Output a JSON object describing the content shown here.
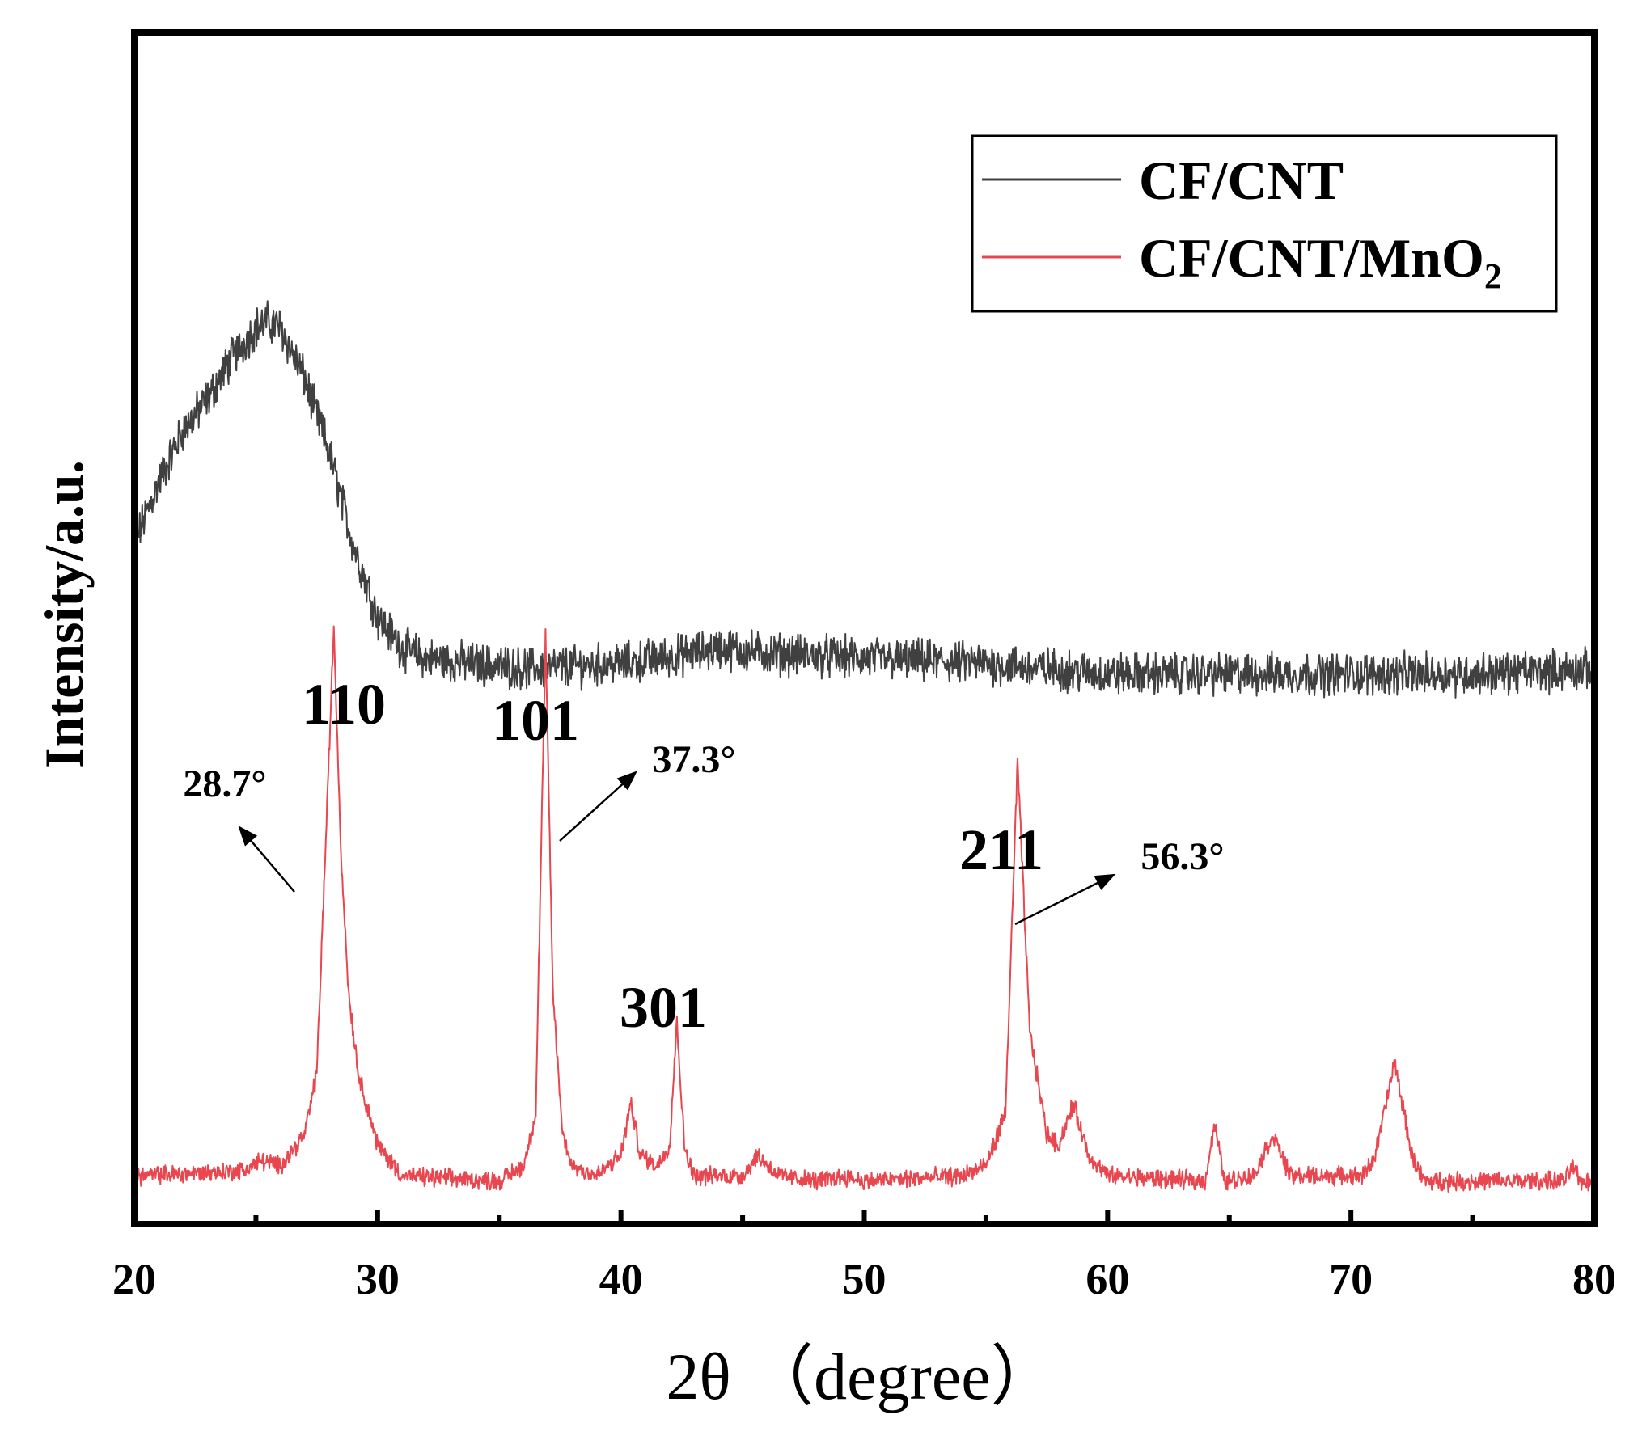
{
  "chart_data": {
    "type": "line",
    "title": "",
    "xlabel": "2θ （degree）",
    "ylabel": "Intensity/a.u.",
    "xlim": [
      20,
      80
    ],
    "xticks": [
      20,
      30,
      40,
      50,
      60,
      70,
      80
    ],
    "ylim": [
      0,
      100
    ],
    "legend_position": "top-right",
    "series": [
      {
        "name": "CF/CNT",
        "color": "#404040",
        "noise": 1.6,
        "x": [
          20,
          21,
          22,
          23,
          24,
          25,
          25.5,
          26,
          27,
          28,
          29,
          30,
          31,
          32,
          34,
          36,
          40,
          43,
          44,
          46,
          50,
          55,
          60,
          65,
          70,
          75,
          80
        ],
        "y": [
          63,
          69,
          74,
          77,
          81,
          84,
          84.5,
          84,
          79,
          72,
          63,
          56,
          53,
          52,
          51.5,
          51,
          51.5,
          52.5,
          53,
          52.5,
          52,
          51.5,
          50.5,
          50.5,
          50.5,
          50.5,
          51
        ]
      },
      {
        "name": "CF/CNT/MnO2",
        "color": "#e8474f",
        "noise": 0.7,
        "x": [
          20,
          24.5,
          25.2,
          26,
          27,
          27.5,
          27.8,
          28.2,
          28.5,
          28.8,
          29.2,
          30,
          31,
          35,
          36,
          36.5,
          36.9,
          37.2,
          37.6,
          38,
          39,
          40,
          40.4,
          40.8,
          41.5,
          42,
          42.3,
          42.6,
          43,
          45,
          45.6,
          46.5,
          48,
          49.2,
          50,
          54,
          55,
          55.8,
          56.3,
          56.8,
          57.5,
          58,
          58.6,
          59.2,
          60,
          64,
          64.4,
          64.8,
          66,
          66.8,
          67.5,
          70.5,
          71,
          71.8,
          72.5,
          73,
          78.8,
          79.1,
          79.4,
          80
        ],
        "y": [
          2,
          2.5,
          3.5,
          3,
          6,
          12,
          30,
          55,
          33,
          20,
          12,
          5,
          2,
          1.5,
          3,
          8,
          54,
          20,
          6,
          3,
          2,
          4,
          9,
          4,
          3,
          5,
          17,
          5,
          2,
          2,
          4,
          2,
          1.5,
          2,
          1.5,
          2,
          3,
          8,
          42,
          16,
          6,
          5,
          9,
          4,
          2,
          1.5,
          7,
          1.5,
          2,
          6,
          2,
          2,
          4,
          13,
          4,
          1.5,
          1.5,
          3,
          1.5,
          1.5
        ]
      }
    ],
    "annotations": [
      {
        "peak": "110",
        "angle": "28.7°"
      },
      {
        "peak": "101",
        "angle": "37.3°"
      },
      {
        "peak": "301"
      },
      {
        "peak": "211",
        "angle": "56.3°"
      }
    ]
  },
  "legend": {
    "entries": [
      {
        "name": "CF/CNT",
        "text": "CF/CNT"
      },
      {
        "name": "CF/CNT/MnO2",
        "text": "CF/CNT/MnO",
        "subscript": "2"
      }
    ]
  }
}
